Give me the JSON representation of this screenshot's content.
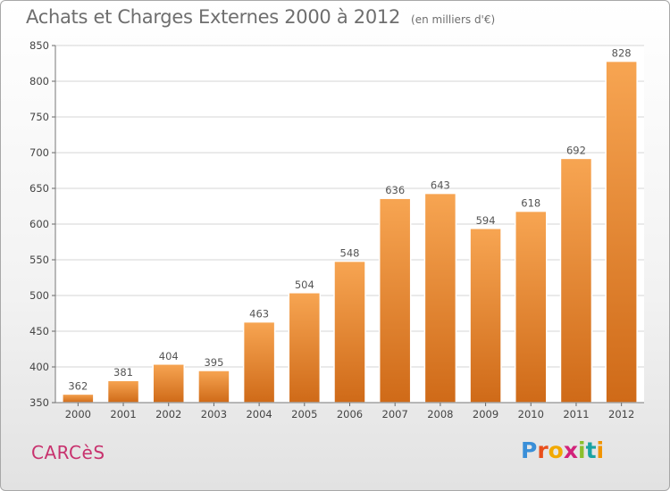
{
  "title": "Achats et Charges Externes 2000 à 2012",
  "unit": "(en milliers d'€)",
  "commune": "CARCèS",
  "logo": {
    "letters": [
      "P",
      "r",
      "o",
      "x",
      "i",
      "t",
      "i"
    ],
    "colors": [
      "#3a8fd8",
      "#e94e1b",
      "#f2a900",
      "#d2227a",
      "#8bbf2c",
      "#1aa3a3",
      "#f29400"
    ]
  },
  "chart_data": {
    "type": "bar",
    "title": "Achats et Charges Externes 2000 à 2012",
    "ylabel": "",
    "xlabel": "",
    "categories": [
      "2000",
      "2001",
      "2002",
      "2003",
      "2004",
      "2005",
      "2006",
      "2007",
      "2008",
      "2009",
      "2010",
      "2011",
      "2012"
    ],
    "values": [
      362,
      381,
      404,
      395,
      463,
      504,
      548,
      636,
      643,
      594,
      618,
      692,
      828
    ],
    "ylim": [
      350,
      850
    ],
    "yticks": [
      350,
      400,
      450,
      500,
      550,
      600,
      650,
      700,
      750,
      800,
      850
    ],
    "grid": true,
    "bar_color": "#f0943c"
  }
}
